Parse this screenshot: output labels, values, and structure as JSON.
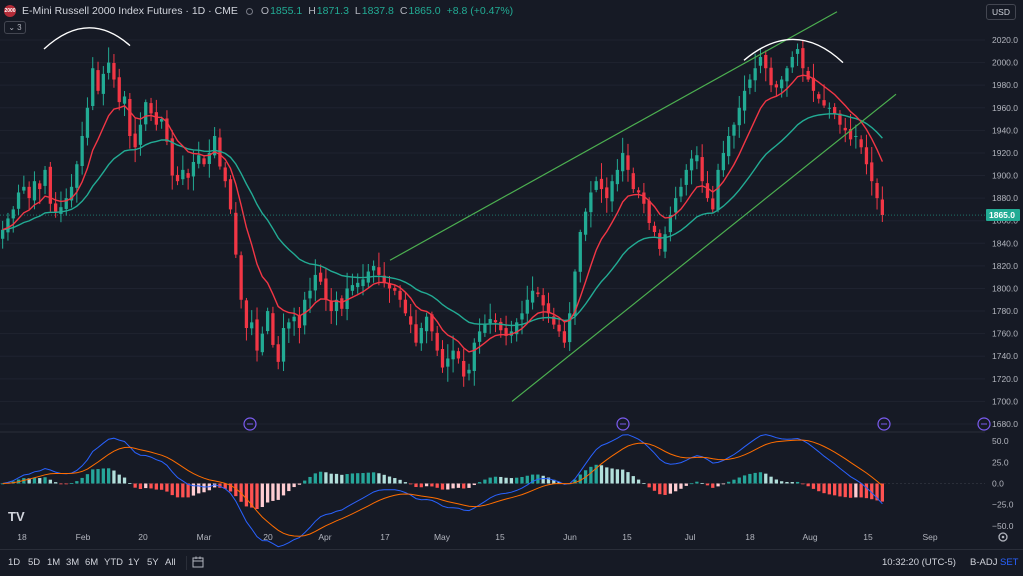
{
  "legend": {
    "symbol_icon_text": "2000",
    "title": "E-Mini Russell 2000 Index Futures · 1D · CME",
    "open_label": "O",
    "open": "1855.1",
    "high_label": "H",
    "high": "1871.3",
    "low_label": "L",
    "low": "1837.8",
    "close_label": "C",
    "close": "1865.0",
    "change": "+8.8 (+0.47%)",
    "indicator_count": "3"
  },
  "currency": "USD",
  "colors": {
    "background": "#161a25",
    "up": "#22ab94",
    "down": "#f23645",
    "ema_fast": "#f23645",
    "ema_slow": "#22ab94",
    "trendline": "#4caf50",
    "macd": "#2962ff",
    "signal": "#ff6d00",
    "marker": "#7b5cf0"
  },
  "price_axis": {
    "ticks": [
      "2020.0",
      "2000.0",
      "1980.0",
      "1960.0",
      "1940.0",
      "1920.0",
      "1900.0",
      "1880.0",
      "1860.0",
      "1840.0",
      "1820.0",
      "1800.0",
      "1780.0",
      "1760.0",
      "1740.0",
      "1720.0",
      "1700.0",
      "1680.0"
    ],
    "last_price": "1865.0"
  },
  "macd_axis": {
    "ticks": [
      "50.0",
      "25.0",
      "0.0",
      "−25.0",
      "−50.0"
    ]
  },
  "time_axis": {
    "ticks": [
      "18",
      "Feb",
      "20",
      "Mar",
      "20",
      "Apr",
      "17",
      "May",
      "15",
      "Jun",
      "15",
      "Jul",
      "18",
      "Aug",
      "15",
      "Sep"
    ]
  },
  "chart_data": {
    "type": "candlestick",
    "symbol": "E-Mini Russell 2000 Index Futures",
    "interval": "1D",
    "exchange": "CME",
    "ohlc": {
      "open": 1855.1,
      "high": 1871.3,
      "low": 1837.8,
      "close": 1865.0,
      "change": 8.8,
      "change_pct": 0.47
    },
    "price_range": [
      1675,
      2030
    ],
    "closes": [
      1852,
      1862,
      1870,
      1885,
      1890,
      1880,
      1895,
      1888,
      1905,
      1875,
      1868,
      1872,
      1880,
      1890,
      1910,
      1935,
      1960,
      1995,
      1975,
      1990,
      2000,
      1985,
      1965,
      1970,
      1935,
      1925,
      1945,
      1965,
      1955,
      1945,
      1950,
      1930,
      1900,
      1895,
      1905,
      1898,
      1912,
      1918,
      1910,
      1920,
      1935,
      1908,
      1895,
      1870,
      1830,
      1790,
      1765,
      1770,
      1745,
      1760,
      1780,
      1750,
      1735,
      1765,
      1770,
      1775,
      1765,
      1790,
      1798,
      1812,
      1806,
      1790,
      1780,
      1790,
      1782,
      1800,
      1803,
      1805,
      1808,
      1815,
      1820,
      1812,
      1805,
      1800,
      1798,
      1790,
      1778,
      1768,
      1752,
      1765,
      1775,
      1762,
      1745,
      1730,
      1738,
      1745,
      1738,
      1722,
      1728,
      1752,
      1762,
      1768,
      1773,
      1770,
      1763,
      1758,
      1762,
      1770,
      1778,
      1790,
      1798,
      1795,
      1785,
      1778,
      1768,
      1762,
      1752,
      1778,
      1815,
      1850,
      1868,
      1885,
      1895,
      1888,
      1880,
      1895,
      1905,
      1920,
      1905,
      1888,
      1885,
      1875,
      1858,
      1850,
      1835,
      1848,
      1865,
      1880,
      1890,
      1905,
      1915,
      1918,
      1895,
      1880,
      1870,
      1905,
      1920,
      1935,
      1945,
      1960,
      1975,
      1985,
      1995,
      2005,
      1995,
      1980,
      1978,
      1985,
      1995,
      2005,
      2012,
      1995,
      1985,
      1975,
      1968,
      1962,
      1960,
      1955,
      1945,
      1940,
      1932,
      1935,
      1925,
      1910,
      1895,
      1880,
      1865
    ],
    "ema_fast": "red moving average",
    "ema_slow": "green moving average",
    "trend_channel": "ascending channel with two green trendlines",
    "annotations": [
      "double top arcs at Feb and late Jul highs"
    ],
    "macd_range": [
      -55,
      55
    ],
    "macd_histogram_last": -18.0
  },
  "bottom_bar": {
    "ranges": [
      "1D",
      "5D",
      "1M",
      "3M",
      "6M",
      "YTD",
      "1Y",
      "5Y",
      "All"
    ],
    "clock": "10:32:20 (UTC-5)",
    "badj": "B-ADJ",
    "set": "SET"
  },
  "logo": "TV"
}
